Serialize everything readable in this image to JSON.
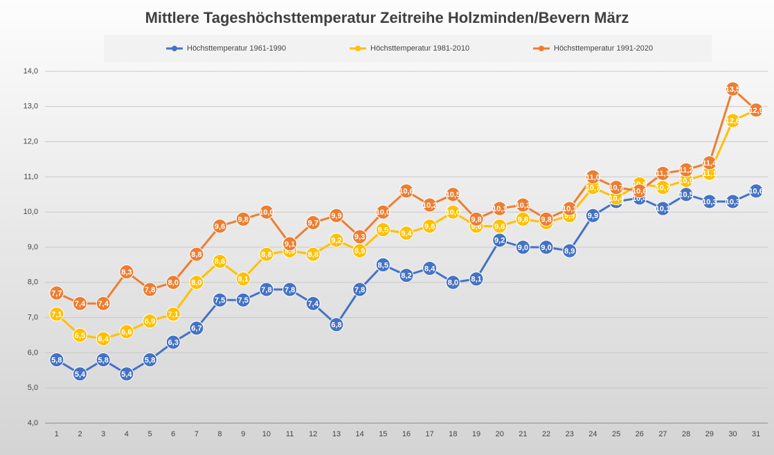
{
  "chart_data": {
    "type": "line",
    "title": "Mittlere Tageshöchsttemperatur Zeitreihe Holzminden/Bevern März",
    "categories": [
      "1",
      "2",
      "3",
      "4",
      "5",
      "6",
      "7",
      "8",
      "9",
      "10",
      "11",
      "12",
      "13",
      "14",
      "15",
      "16",
      "17",
      "18",
      "19",
      "20",
      "21",
      "22",
      "23",
      "24",
      "25",
      "26",
      "27",
      "28",
      "29",
      "30",
      "31"
    ],
    "series": [
      {
        "name": "Höchsttemperatur 1961-1990",
        "color": "#4472c4",
        "values": [
          5.8,
          5.4,
          5.8,
          5.4,
          5.8,
          6.3,
          6.7,
          7.5,
          7.5,
          7.8,
          7.8,
          7.4,
          6.8,
          7.8,
          8.5,
          8.2,
          8.4,
          8.0,
          8.1,
          9.2,
          9.0,
          9.0,
          8.9,
          9.9,
          10.3,
          10.4,
          10.1,
          10.5,
          10.3,
          10.3,
          10.6
        ],
        "value_labels": [
          "5,8",
          "5,4",
          "5,8",
          "5,4",
          "5,8",
          "6,3",
          "6,7",
          "7,5",
          "7,5",
          "7,8",
          "7,8",
          "7,4",
          "6,8",
          "7,8",
          "8,5",
          "8,2",
          "8,4",
          "8,0",
          "8,1",
          "9,2",
          "9,0",
          "9,0",
          "8,9",
          "9,9",
          "10,3",
          "10,4",
          "10,1",
          "10,5",
          "10,3",
          "10,3",
          "10,6"
        ]
      },
      {
        "name": "Höchsttemperatur 1981-2010",
        "color": "#ffc000",
        "values": [
          7.1,
          6.5,
          6.4,
          6.6,
          6.9,
          7.1,
          8.0,
          8.6,
          8.1,
          8.8,
          8.9,
          8.8,
          9.2,
          8.9,
          9.5,
          9.4,
          9.6,
          10.0,
          9.6,
          9.6,
          9.8,
          9.7,
          9.9,
          10.7,
          10.4,
          10.8,
          10.7,
          10.9,
          11.1,
          12.6,
          12.9
        ],
        "value_labels": [
          "7,1",
          "6,5",
          "6,4",
          "6,6",
          "6,9",
          "7,1",
          "8,0",
          "8,6",
          "8,1",
          "8,8",
          "8,9",
          "8,8",
          "9,2",
          "8,9",
          "9,5",
          "9,4",
          "9,6",
          "10,0",
          "9,6",
          "9,6",
          "9,8",
          "9,7",
          "9,9",
          "10,7",
          "10,4",
          "10,8",
          "10,7",
          "10,9",
          "11,1",
          "12,6",
          "12,9"
        ]
      },
      {
        "name": "Höchsttemperatur 1991-2020",
        "color": "#ed7d31",
        "values": [
          7.7,
          7.4,
          7.4,
          8.3,
          7.8,
          8.0,
          8.8,
          9.6,
          9.8,
          10.0,
          9.1,
          9.7,
          9.9,
          9.3,
          10.0,
          10.6,
          10.2,
          10.5,
          9.8,
          10.1,
          10.2,
          9.8,
          10.1,
          11.0,
          10.7,
          10.6,
          11.1,
          11.2,
          11.4,
          13.5,
          12.9
        ],
        "value_labels": [
          "7,7",
          "7,4",
          "7,4",
          "8,3",
          "7,8",
          "8,0",
          "8,8",
          "9,6",
          "9,8",
          "10,0",
          "9,1",
          "9,7",
          "9,9",
          "9,3",
          "10,0",
          "10,6",
          "10,2",
          "10,5",
          "9,8",
          "10,1",
          "10,2",
          "9,8",
          "10,1",
          "11,0",
          "10,7",
          "10,6",
          "11,1",
          "11,2",
          "11,4",
          "13,5",
          "12,9"
        ]
      }
    ],
    "ylim": [
      4,
      14
    ],
    "yticks": [
      {
        "value": 4,
        "label": "4,0"
      },
      {
        "value": 5,
        "label": "5,0"
      },
      {
        "value": 6,
        "label": "6,0"
      },
      {
        "value": 7,
        "label": "7,0"
      },
      {
        "value": 8,
        "label": "8,0"
      },
      {
        "value": 9,
        "label": "9,0"
      },
      {
        "value": 10,
        "label": "10,0"
      },
      {
        "value": 11,
        "label": "11,0"
      },
      {
        "value": 12,
        "label": "12,0"
      },
      {
        "value": 13,
        "label": "13,0"
      },
      {
        "value": 14,
        "label": "14,0"
      }
    ],
    "grid": true,
    "legend": "top"
  }
}
